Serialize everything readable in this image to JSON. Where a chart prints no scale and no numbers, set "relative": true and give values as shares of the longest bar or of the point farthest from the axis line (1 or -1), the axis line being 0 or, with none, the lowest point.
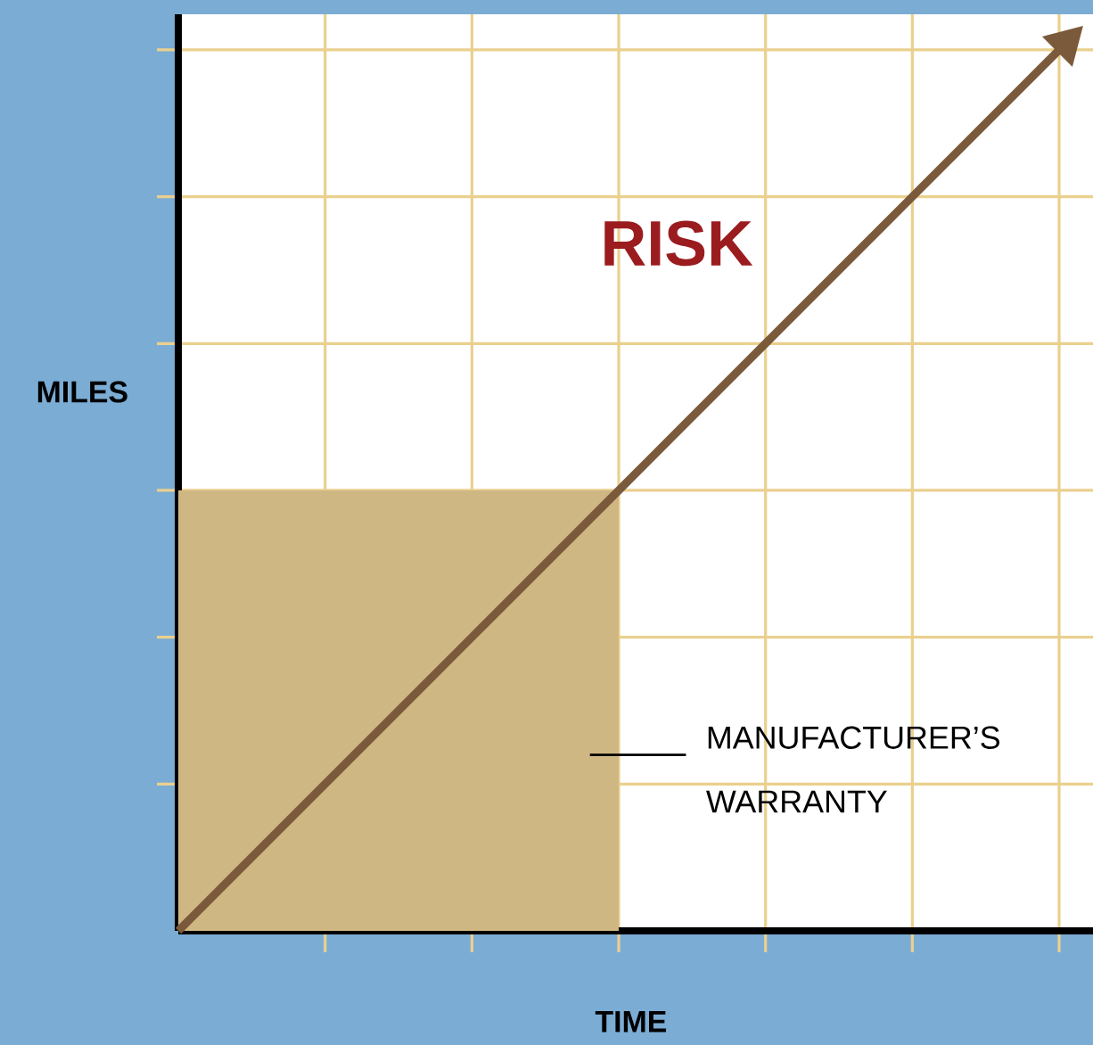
{
  "chart_data": {
    "type": "line",
    "relative": true,
    "xlabel": "TIME",
    "ylabel": "MILES",
    "grid": true,
    "categories": [
      null,
      null,
      null,
      null,
      null,
      null,
      null
    ],
    "annotations": [
      "RISK",
      "MANUFACTURER’S WARRANTY"
    ],
    "series": [
      {
        "type": "area",
        "color": "#cfb784",
        "values": [
          0.5,
          0.5,
          0.5,
          0.5,
          null,
          null,
          null
        ]
      },
      {
        "color": "#7b5a3c",
        "values": [
          0,
          0.1667,
          0.3333,
          0.5,
          0.6667,
          0.8333,
          1
        ]
      }
    ]
  }
}
